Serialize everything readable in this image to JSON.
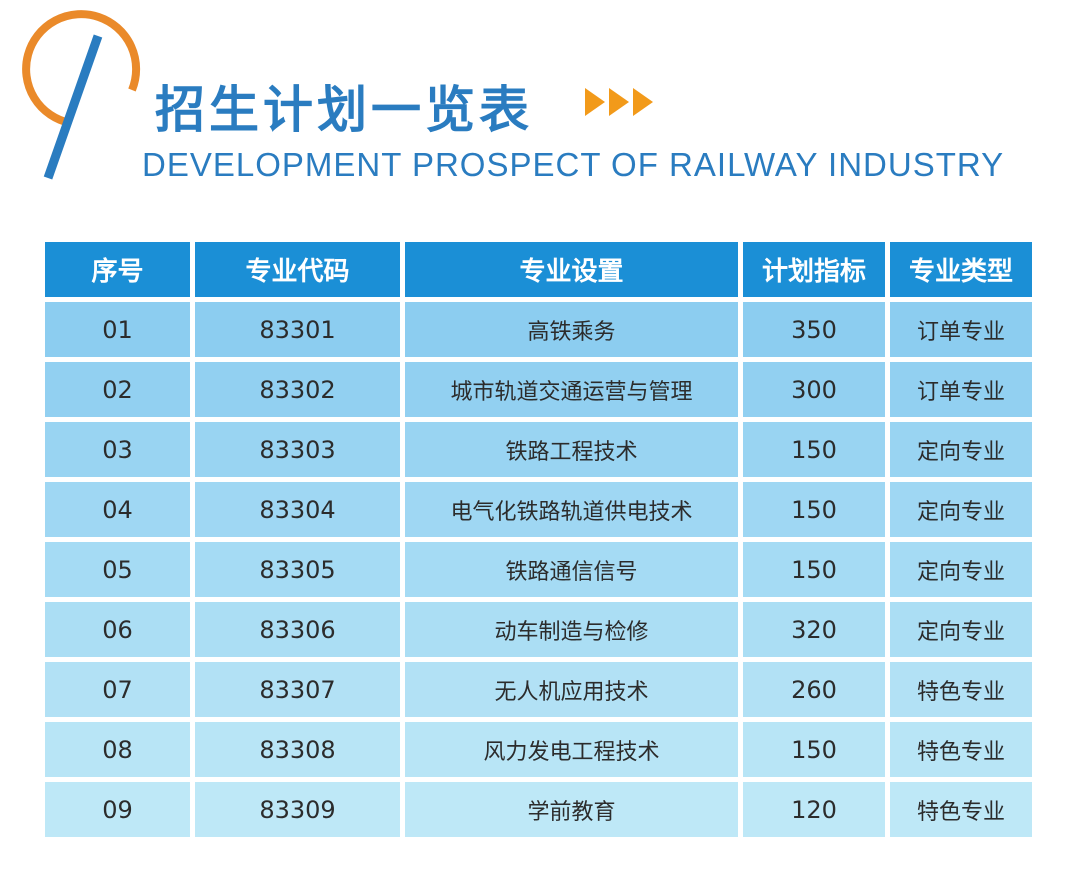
{
  "header": {
    "title": "招生计划一览表",
    "subtitle": "DEVELOPMENT PROSPECT OF RAILWAY INDUSTRY"
  },
  "colors": {
    "primary": "#2a7cc0",
    "accent": "#f29a1a",
    "header_bg": "#1b8fd6",
    "row_bg": "#8ccdf0"
  },
  "table": {
    "columns": [
      "序号",
      "专业代码",
      "专业设置",
      "计划指标",
      "专业类型"
    ],
    "rows": [
      [
        "01",
        "83301",
        "高铁乘务",
        "350",
        "订单专业"
      ],
      [
        "02",
        "83302",
        "城市轨道交通运营与管理",
        "300",
        "订单专业"
      ],
      [
        "03",
        "83303",
        "铁路工程技术",
        "150",
        "定向专业"
      ],
      [
        "04",
        "83304",
        "电气化铁路轨道供电技术",
        "150",
        "定向专业"
      ],
      [
        "05",
        "83305",
        "铁路通信信号",
        "150",
        "定向专业"
      ],
      [
        "06",
        "83306",
        "动车制造与检修",
        "320",
        "定向专业"
      ],
      [
        "07",
        "83307",
        "无人机应用技术",
        "260",
        "特色专业"
      ],
      [
        "08",
        "83308",
        "风力发电工程技术",
        "150",
        "特色专业"
      ],
      [
        "09",
        "83309",
        "学前教育",
        "120",
        "特色专业"
      ]
    ]
  }
}
